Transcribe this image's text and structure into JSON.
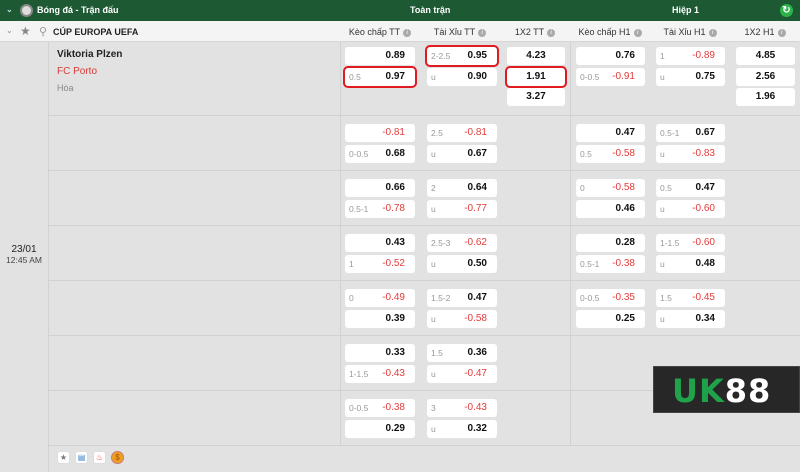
{
  "header": {
    "title": "Bóng đá - Trận đấu",
    "full_time": "Toàn trận",
    "half": "Hiệp 1"
  },
  "league": {
    "name": "CÚP EUROPA UEFA"
  },
  "columns": [
    "Kèo chấp TT",
    "Tài Xỉu TT",
    "1X2 TT",
    "Kèo chấp H1",
    "Tài Xỉu H1",
    "1X2 H1"
  ],
  "match": {
    "home": "Viktoria Plzen",
    "away": "FC Porto",
    "draw": "Hòa",
    "date": "23/01",
    "time": "12:45 AM"
  },
  "rows": [
    {
      "kc_tt": [
        [
          "",
          "0.89"
        ],
        [
          "0.5",
          "0.97"
        ]
      ],
      "tx_tt": [
        [
          "2-2.5",
          "0.95"
        ],
        [
          "u",
          "0.90"
        ]
      ],
      "x12_tt": [
        "4.23",
        "1.91",
        "3.27"
      ],
      "kc_h1": [
        [
          "",
          "0.76"
        ],
        [
          "0-0.5",
          "-0.91"
        ]
      ],
      "tx_h1": [
        [
          "1",
          "-0.89"
        ],
        [
          "u",
          "0.75"
        ]
      ],
      "x12_h1": [
        "4.85",
        "2.56",
        "1.96"
      ]
    },
    {
      "kc_tt": [
        [
          "",
          "-0.81"
        ],
        [
          "0-0.5",
          "0.68"
        ]
      ],
      "tx_tt": [
        [
          "2.5",
          "-0.81"
        ],
        [
          "u",
          "0.67"
        ]
      ],
      "kc_h1": [
        [
          "",
          "0.47"
        ],
        [
          "0.5",
          "-0.58"
        ]
      ],
      "tx_h1": [
        [
          "0.5-1",
          "0.67"
        ],
        [
          "u",
          "-0.83"
        ]
      ]
    },
    {
      "kc_tt": [
        [
          "",
          "0.66"
        ],
        [
          "0.5-1",
          "-0.78"
        ]
      ],
      "tx_tt": [
        [
          "2",
          "0.64"
        ],
        [
          "u",
          "-0.77"
        ]
      ],
      "kc_h1": [
        [
          "0",
          "-0.58"
        ],
        [
          "",
          "0.46"
        ]
      ],
      "tx_h1": [
        [
          "0.5",
          "0.47"
        ],
        [
          "u",
          "-0.60"
        ]
      ]
    },
    {
      "kc_tt": [
        [
          "",
          "0.43"
        ],
        [
          "1",
          "-0.52"
        ]
      ],
      "tx_tt": [
        [
          "2.5-3",
          "-0.62"
        ],
        [
          "u",
          "0.50"
        ]
      ],
      "kc_h1": [
        [
          "",
          "0.28"
        ],
        [
          "0.5-1",
          "-0.38"
        ]
      ],
      "tx_h1": [
        [
          "1-1.5",
          "-0.60"
        ],
        [
          "u",
          "0.48"
        ]
      ]
    },
    {
      "kc_tt": [
        [
          "0",
          "-0.49"
        ],
        [
          "",
          "0.39"
        ]
      ],
      "tx_tt": [
        [
          "1.5-2",
          "0.47"
        ],
        [
          "u",
          "-0.58"
        ]
      ],
      "kc_h1": [
        [
          "0-0.5",
          "-0.35"
        ],
        [
          "",
          "0.25"
        ]
      ],
      "tx_h1": [
        [
          "1.5",
          "-0.45"
        ],
        [
          "u",
          "0.34"
        ]
      ]
    },
    {
      "kc_tt": [
        [
          "",
          "0.33"
        ],
        [
          "1-1.5",
          "-0.43"
        ]
      ],
      "tx_tt": [
        [
          "1.5",
          "0.36"
        ],
        [
          "u",
          "-0.47"
        ]
      ]
    },
    {
      "kc_tt": [
        [
          "0-0.5",
          "-0.38"
        ],
        [
          "",
          "0.29"
        ]
      ],
      "tx_tt": [
        [
          "3",
          "-0.43"
        ],
        [
          "u",
          "0.32"
        ]
      ]
    }
  ],
  "highlighted": [
    "kc_tt.0.1",
    "tx_tt.0.0",
    "x12_tt.0.1"
  ],
  "logo": {
    "text": "UK88"
  },
  "colors": {
    "header": "#1d5a34",
    "negative": "#e23b3b",
    "highlight": "#e01b22"
  },
  "footer_icons": [
    "star-icon",
    "stats-icon",
    "fire-icon",
    "coin-icon"
  ]
}
